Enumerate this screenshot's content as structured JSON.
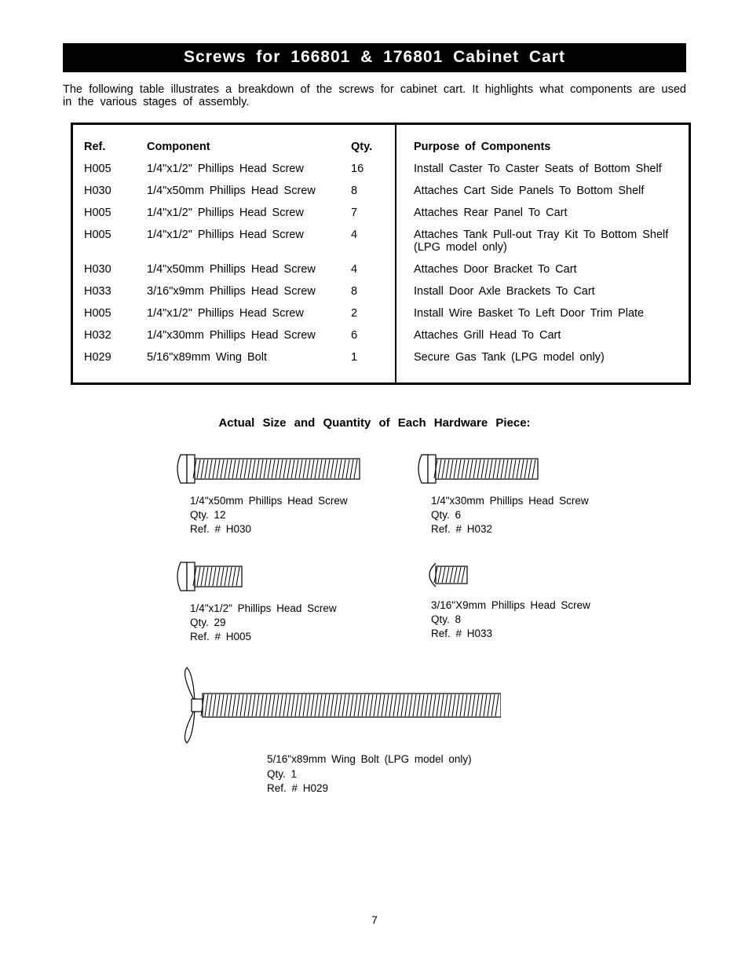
{
  "title": "Screws for 166801 & 176801 Cabinet Cart",
  "intro": "The following table illustrates a breakdown of the screws for cabinet cart. It highlights what components are used in the various stages of assembly.",
  "table": {
    "headers": {
      "ref": "Ref.",
      "component": "Component",
      "qty": "Qty.",
      "purpose": "Purpose of Components"
    },
    "rows": [
      {
        "ref": "H005",
        "component": "1/4\"x1/2\" Phillips Head Screw",
        "qty": "16",
        "purpose": "Install Caster To Caster Seats of Bottom Shelf"
      },
      {
        "ref": "H030",
        "component": "1/4\"x50mm Phillips Head Screw",
        "qty": "8",
        "purpose": "Attaches Cart Side Panels To Bottom Shelf"
      },
      {
        "ref": "H005",
        "component": "1/4\"x1/2\" Phillips Head Screw",
        "qty": "7",
        "purpose": "Attaches Rear Panel To Cart"
      },
      {
        "ref": "H005",
        "component": "1/4\"x1/2\" Phillips Head Screw",
        "qty": "4",
        "purpose": "Attaches Tank Pull-out Tray Kit To Bottom Shelf (LPG model only)"
      },
      {
        "ref": "H030",
        "component": "1/4\"x50mm Phillips Head Screw",
        "qty": "4",
        "purpose": "Attaches Door Bracket To Cart"
      },
      {
        "ref": "H033",
        "component": "3/16\"x9mm Phillips Head Screw",
        "qty": "8",
        "purpose": "Install Door Axle Brackets To Cart"
      },
      {
        "ref": "H005",
        "component": "1/4\"x1/2\" Phillips Head Screw",
        "qty": "2",
        "purpose": "Install Wire Basket To Left Door Trim Plate"
      },
      {
        "ref": "H032",
        "component": "1/4\"x30mm Phillips Head Screw",
        "qty": "6",
        "purpose": "Attaches Grill Head To Cart"
      },
      {
        "ref": "H029",
        "component": "5/16\"x89mm Wing Bolt",
        "qty": "1",
        "purpose": "Secure Gas Tank (LPG model only)"
      }
    ]
  },
  "hardware_title": "Actual Size and Quantity of Each Hardware Piece:",
  "hardware": [
    {
      "name": "1/4\"x50mm Phillips Head Screw",
      "qty": "Qty. 12",
      "ref": "Ref. # H030",
      "shaft_len": 210,
      "shaft_h": 26,
      "head": "phillips"
    },
    {
      "name": "1/4\"x30mm Phillips Head Screw",
      "qty": "Qty. 6",
      "ref": "Ref. # H032",
      "shaft_len": 130,
      "shaft_h": 26,
      "head": "phillips"
    },
    {
      "name": "1/4\"x1/2\" Phillips Head Screw",
      "qty": "Qty. 29",
      "ref": "Ref. # H005",
      "shaft_len": 60,
      "shaft_h": 26,
      "head": "phillips"
    },
    {
      "name": "3/16\"X9mm Phillips Head Screw",
      "qty": "Qty. 8",
      "ref": "Ref. # H033",
      "shaft_len": 40,
      "shaft_h": 22,
      "head": "round"
    },
    {
      "name": "5/16\"x89mm Wing Bolt (LPG model only)",
      "qty": "Qty. 1",
      "ref": "Ref. # H029",
      "shaft_len": 380,
      "shaft_h": 30,
      "head": "wing",
      "wide": true
    }
  ],
  "page_number": "7",
  "colors": {
    "bg": "#ffffff",
    "fg": "#000000"
  }
}
